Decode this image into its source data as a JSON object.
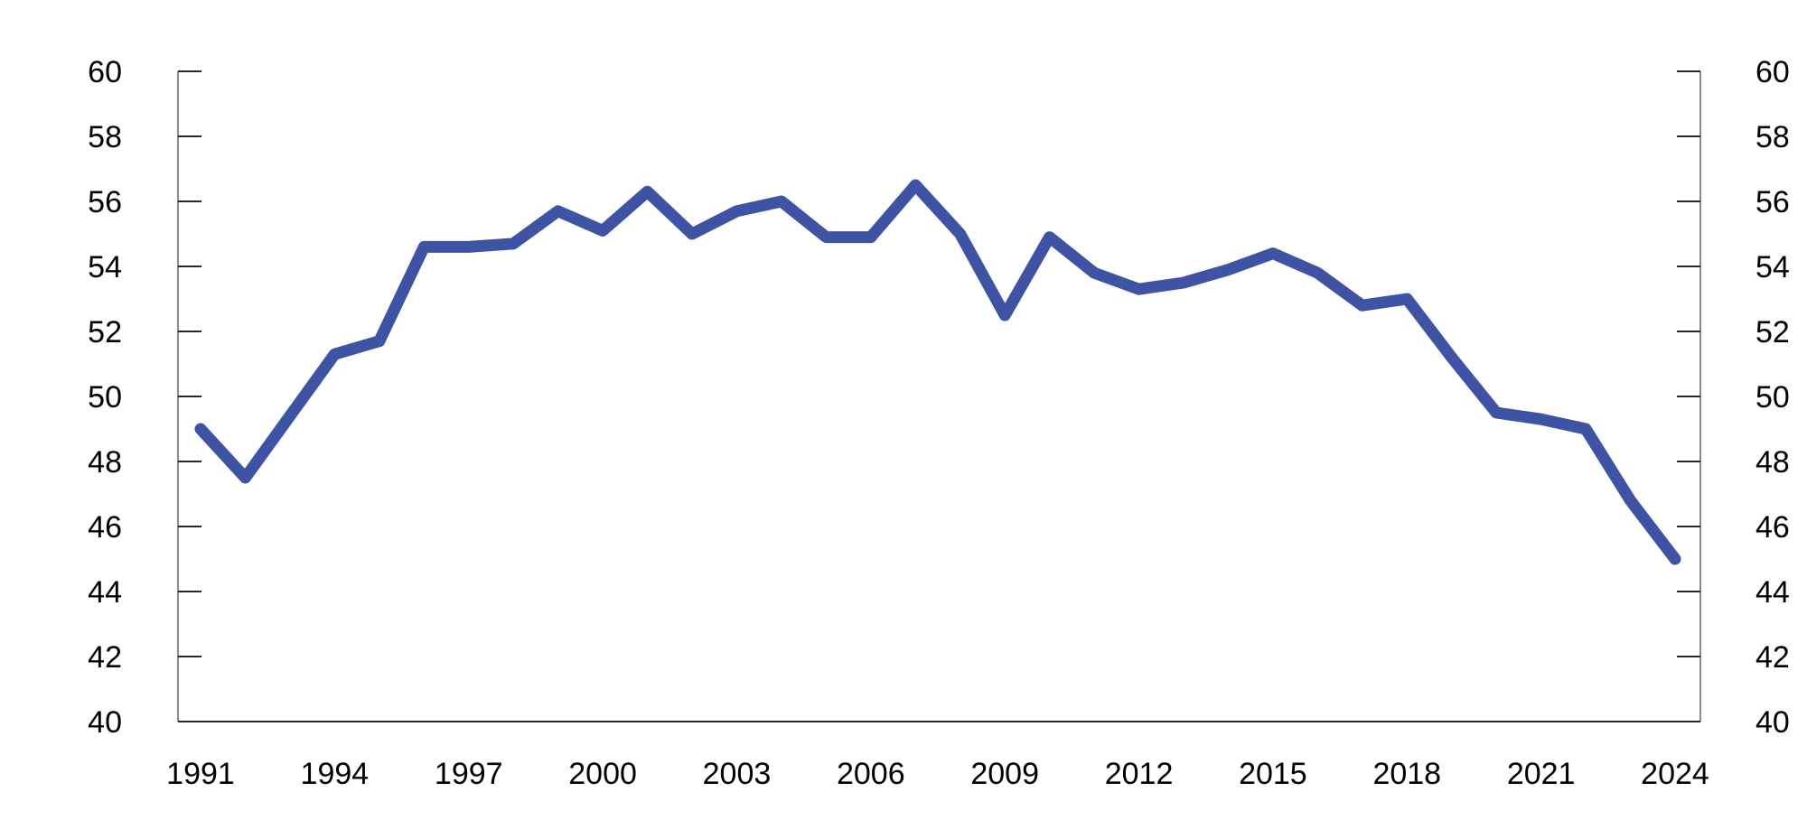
{
  "chart_data": {
    "type": "line",
    "title": "",
    "xlabel": "",
    "ylabel": "",
    "x": [
      1991,
      1992,
      1993,
      1994,
      1995,
      1996,
      1997,
      1998,
      1999,
      2000,
      2001,
      2002,
      2003,
      2004,
      2005,
      2006,
      2007,
      2008,
      2009,
      2010,
      2011,
      2012,
      2013,
      2014,
      2015,
      2016,
      2017,
      2018,
      2019,
      2020,
      2021,
      2022,
      2023,
      2024
    ],
    "values": [
      49.0,
      47.5,
      49.4,
      51.3,
      51.7,
      54.6,
      54.6,
      54.7,
      55.7,
      55.1,
      56.3,
      55.0,
      55.7,
      56.0,
      54.9,
      54.9,
      56.5,
      55.0,
      52.5,
      54.9,
      53.8,
      53.3,
      53.5,
      53.9,
      54.4,
      53.8,
      52.8,
      53.0,
      51.2,
      49.5,
      49.3,
      49.0,
      46.8,
      45.0
    ],
    "xlim": [
      1991,
      2024
    ],
    "ylim": [
      40,
      60
    ],
    "y_ticks": [
      40,
      42,
      44,
      46,
      48,
      50,
      52,
      54,
      56,
      58,
      60
    ],
    "x_tick_labels": [
      "1991",
      "1994",
      "1997",
      "2000",
      "2003",
      "2006",
      "2009",
      "2012",
      "2015",
      "2018",
      "2021",
      "2024"
    ],
    "x_tick_years": [
      1991,
      1994,
      1997,
      2000,
      2003,
      2006,
      2009,
      2012,
      2015,
      2018,
      2021,
      2024
    ],
    "grid": false,
    "legend": "none",
    "dual_y_axis": true,
    "line_color": "#3E53A4",
    "vertical_axis_color": "#8C8C8C",
    "bottom_axis_color": "#262626",
    "tick_color": "#262626",
    "label_color": "#000000"
  }
}
